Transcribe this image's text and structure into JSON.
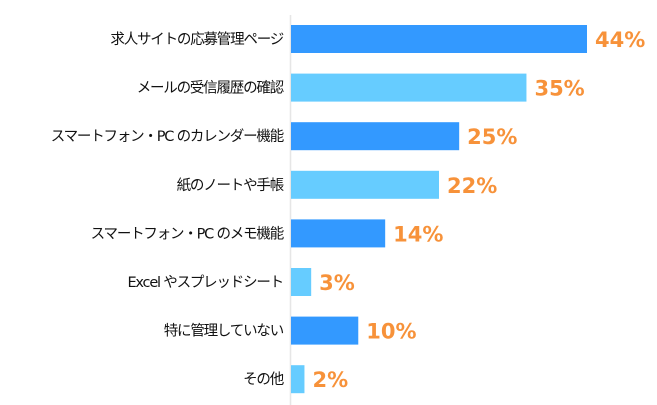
{
  "chart_data": {
    "type": "bar",
    "orientation": "horizontal",
    "categories": [
      "求人サイトの応募管理ページ",
      "メールの受信履歴の確認",
      "スマートフォン・PC のカレンダー機能",
      "紙のノートや手帳",
      "スマートフォン・PC のメモ機能",
      "Excel やスプレッドシート",
      "特に管理していない",
      "その他"
    ],
    "values": [
      44,
      35,
      25,
      22,
      14,
      3,
      10,
      2
    ],
    "data_labels": [
      "44%",
      "35%",
      "25%",
      "22%",
      "14%",
      "3%",
      "10%",
      "2%"
    ],
    "unit": "%",
    "xlim": [
      0,
      50
    ],
    "grid": false,
    "legend": "none",
    "colors": {
      "bar_dark": "#3399FF",
      "bar_light": "#66CCFF",
      "label": "#F7923A",
      "axis": "#E6E6E6"
    }
  }
}
